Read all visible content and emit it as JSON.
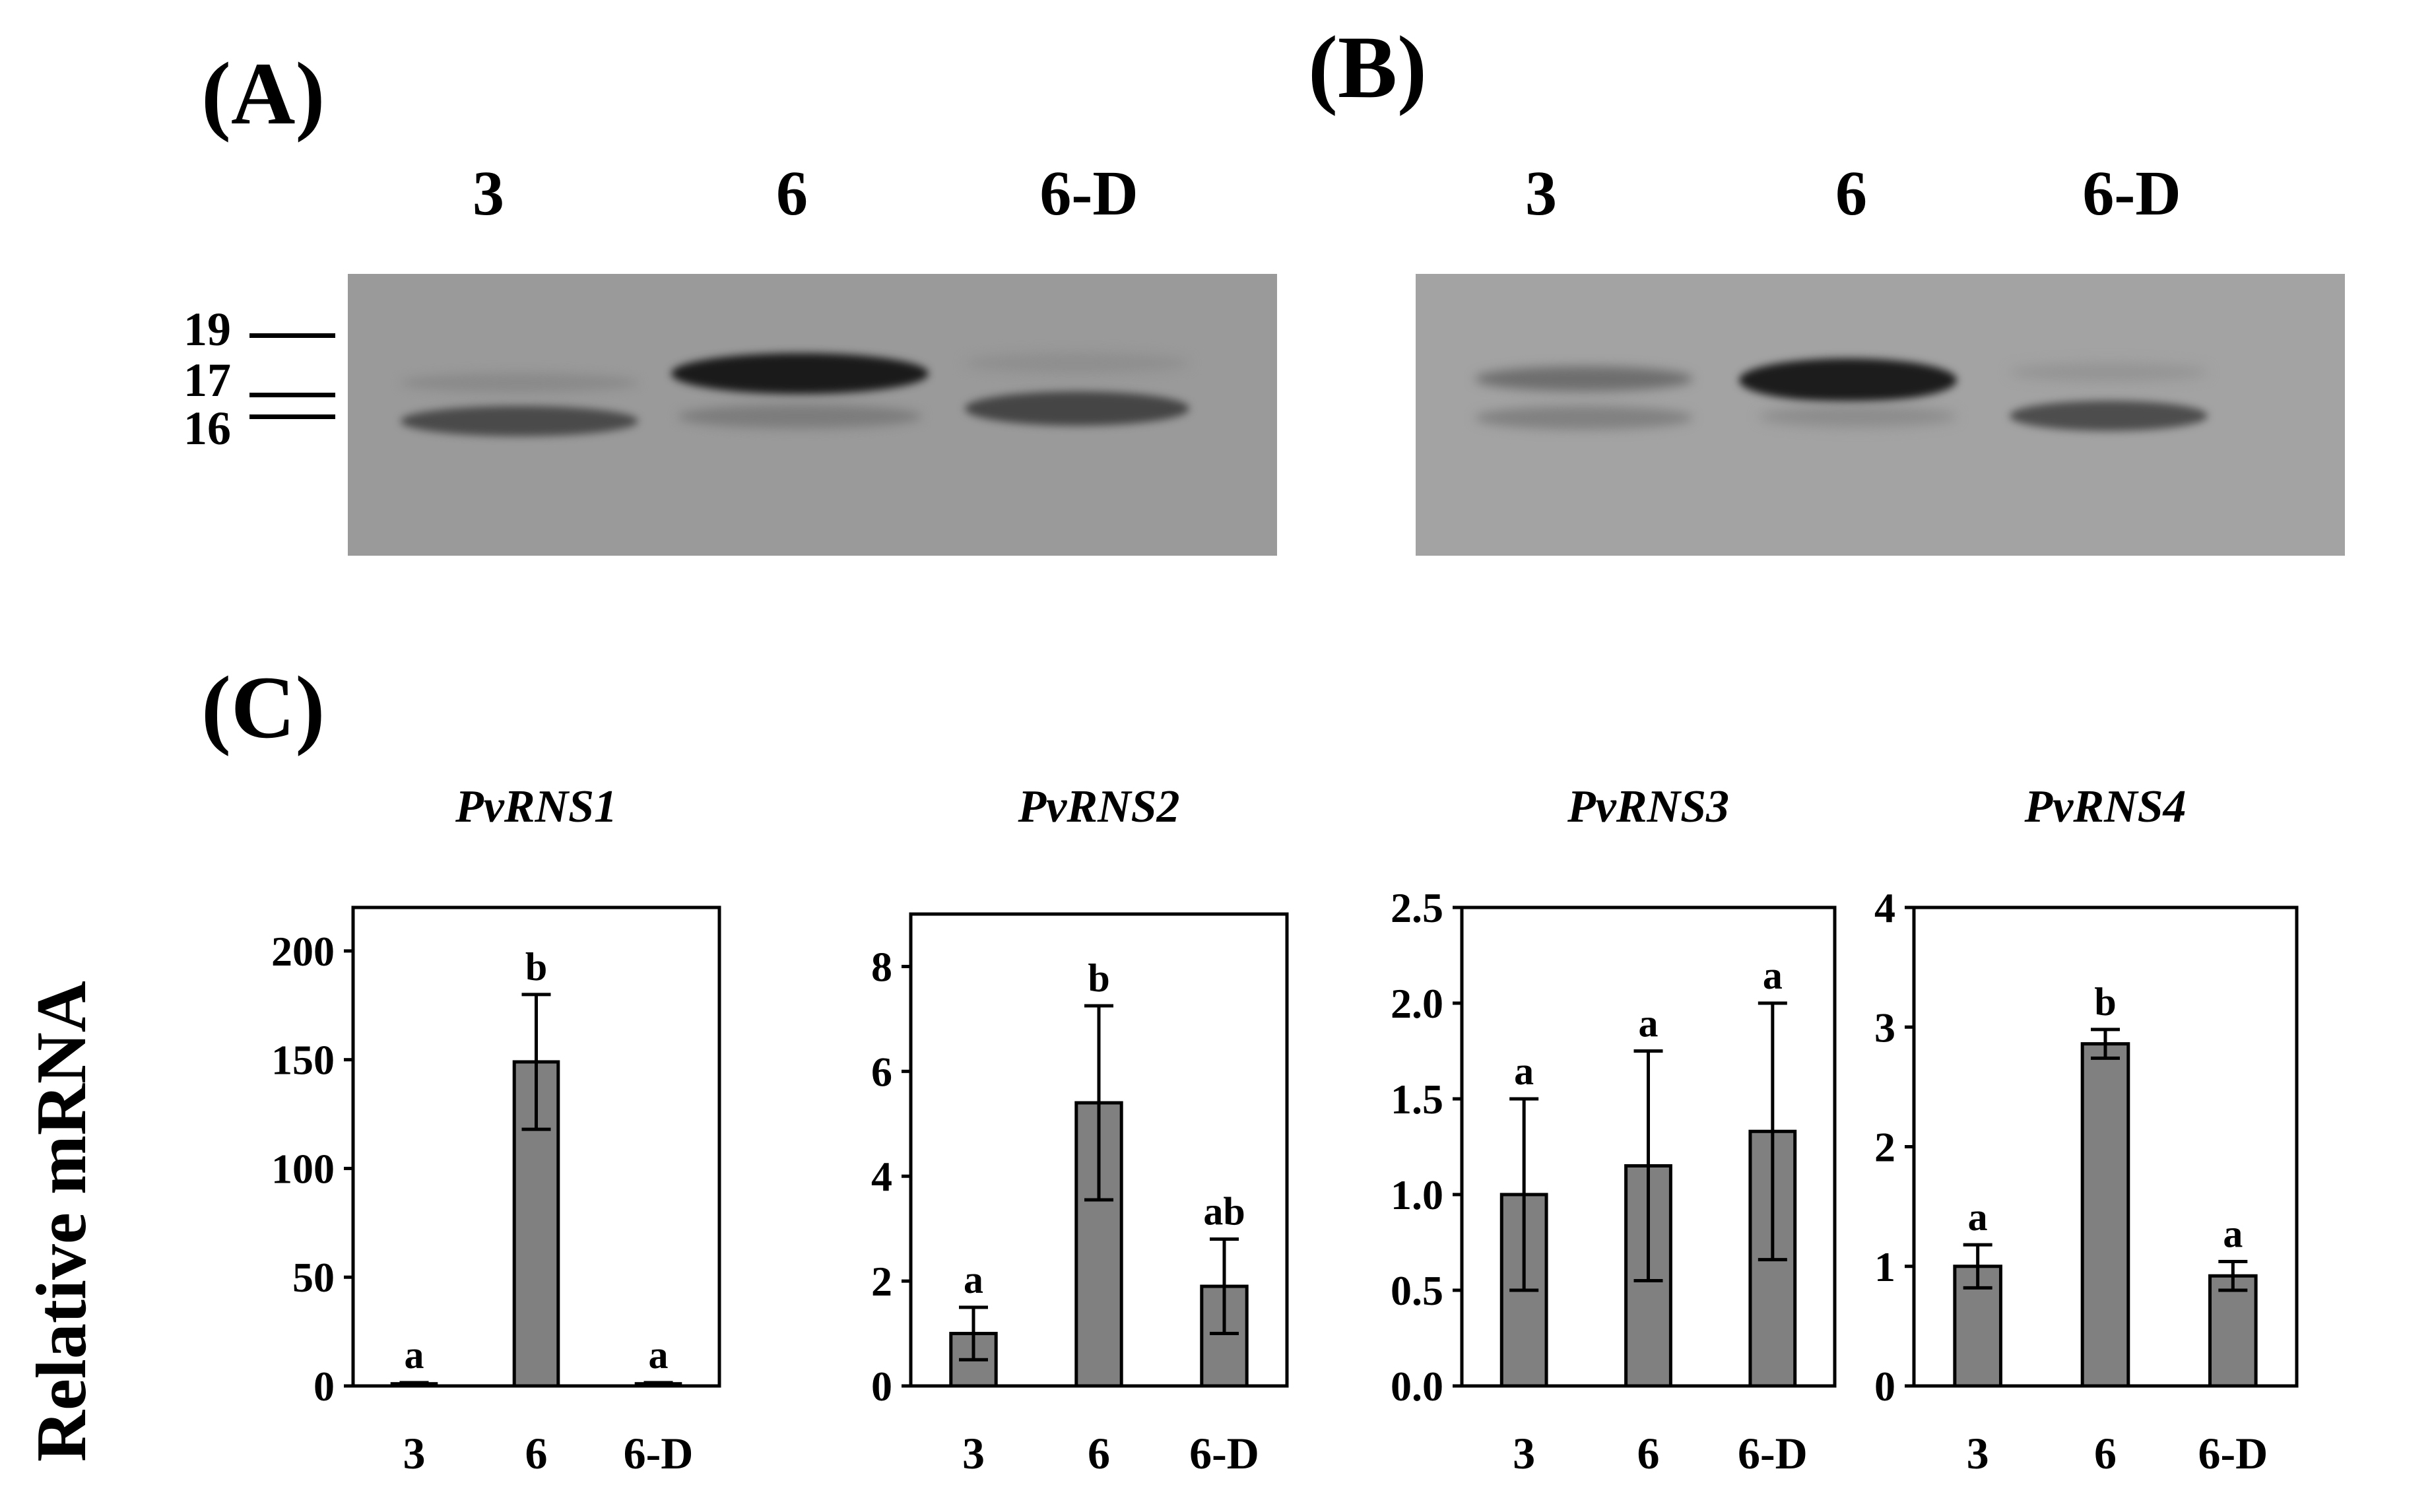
{
  "panels": {
    "A": {
      "label": "(A)",
      "lanes": [
        "3",
        "6",
        "6-D"
      ],
      "markers": [
        "19",
        "17",
        "16"
      ]
    },
    "B": {
      "label": "(B)",
      "lanes": [
        "3",
        "6",
        "6-D"
      ]
    },
    "C": {
      "label": "(C)",
      "ylabel": "Relative mRNA"
    }
  },
  "chart_data": [
    {
      "type": "bar",
      "title": "PvRNS1",
      "categories": [
        "3",
        "6",
        "6-D"
      ],
      "values": [
        1,
        149,
        1
      ],
      "errors": [
        0.5,
        31,
        0.5
      ],
      "significance": [
        "a",
        "b",
        "a"
      ],
      "ylim": [
        0,
        220
      ],
      "yticks": [
        "0",
        "50",
        "100",
        "150",
        "200"
      ],
      "ytick_values": [
        0,
        50,
        100,
        150,
        200
      ],
      "color": "#808080"
    },
    {
      "type": "bar",
      "title": "PvRNS2",
      "categories": [
        "3",
        "6",
        "6-D"
      ],
      "values": [
        1.0,
        5.4,
        1.9
      ],
      "errors": [
        0.5,
        1.85,
        0.9
      ],
      "significance": [
        "a",
        "b",
        "ab"
      ],
      "ylim": [
        0,
        9
      ],
      "yticks": [
        "0",
        "2",
        "4",
        "6",
        "8"
      ],
      "ytick_values": [
        0,
        2,
        4,
        6,
        8
      ],
      "color": "#808080"
    },
    {
      "type": "bar",
      "title": "PvRNS3",
      "categories": [
        "3",
        "6",
        "6-D"
      ],
      "values": [
        1.0,
        1.15,
        1.33
      ],
      "errors": [
        0.5,
        0.6,
        0.67
      ],
      "significance": [
        "a",
        "a",
        "a"
      ],
      "ylim": [
        0,
        2.5
      ],
      "yticks": [
        "0.0",
        "0.5",
        "1.0",
        "1.5",
        "2.0",
        "2.5"
      ],
      "ytick_values": [
        0,
        0.5,
        1.0,
        1.5,
        2.0,
        2.5
      ],
      "color": "#808080"
    },
    {
      "type": "bar",
      "title": "PvRNS4",
      "categories": [
        "3",
        "6",
        "6-D"
      ],
      "values": [
        1.0,
        2.86,
        0.92
      ],
      "errors": [
        0.18,
        0.12,
        0.12
      ],
      "significance": [
        "a",
        "b",
        "a"
      ],
      "ylim": [
        0,
        4
      ],
      "yticks": [
        "0",
        "1",
        "2",
        "3",
        "4"
      ],
      "ytick_values": [
        0,
        1,
        2,
        3,
        4
      ],
      "color": "#808080"
    }
  ]
}
